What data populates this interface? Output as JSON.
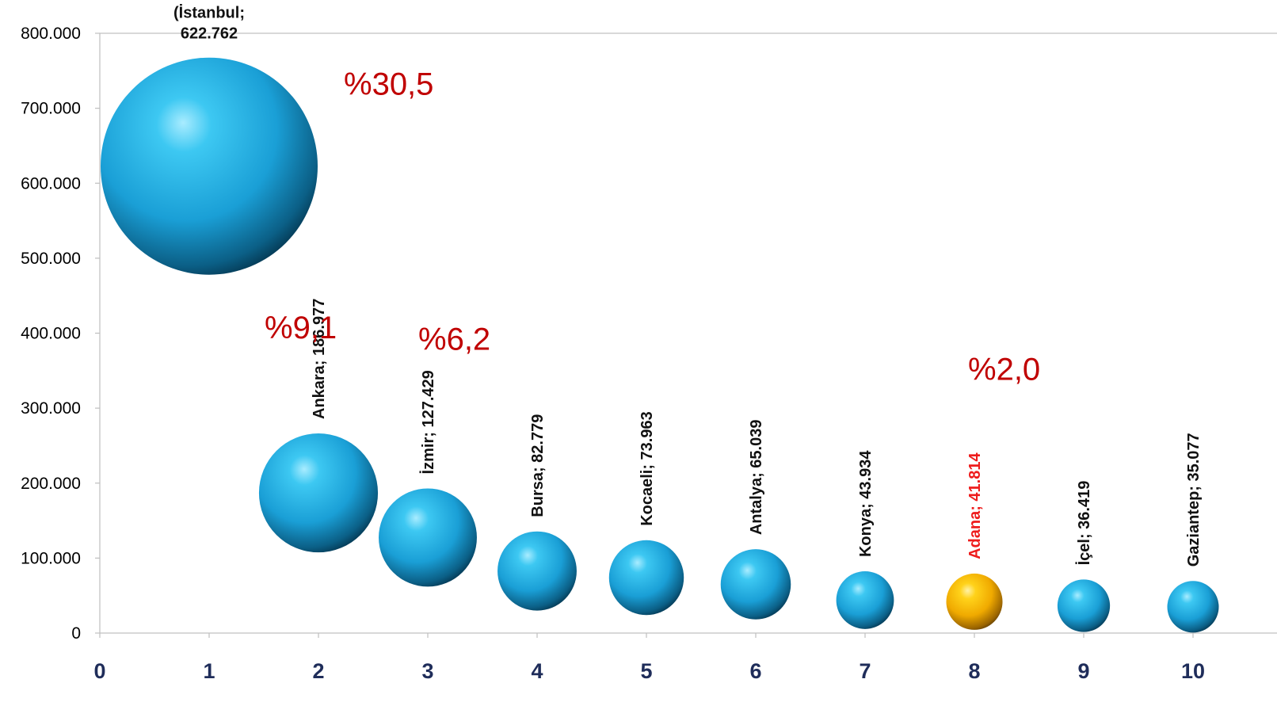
{
  "chart_data": {
    "type": "bubble",
    "xlim": [
      0,
      10
    ],
    "ylim": [
      0,
      800000
    ],
    "x_ticks": [
      "0",
      "1",
      "2",
      "3",
      "4",
      "5",
      "6",
      "7",
      "8",
      "9",
      "10"
    ],
    "y_ticks": [
      "0",
      "100.000",
      "200.000",
      "300.000",
      "400.000",
      "500.000",
      "600.000",
      "700.000",
      "800.000"
    ],
    "grid": false,
    "colors": {
      "bubble": "#1ea5db",
      "highlight": "#f5b400",
      "highlight_label": "#ee1c1c",
      "percent": "#c00000",
      "x_tick": "#1f2d5a"
    },
    "points": [
      {
        "x": 1,
        "y": 622762,
        "label": "(İstanbul;\n622.762"
      },
      {
        "x": 2,
        "y": 186977,
        "label": "Ankara; 186.977"
      },
      {
        "x": 3,
        "y": 127429,
        "label": "İzmir; 127.429"
      },
      {
        "x": 4,
        "y": 82779,
        "label": "Bursa; 82.779"
      },
      {
        "x": 5,
        "y": 73963,
        "label": "Kocaeli; 73.963"
      },
      {
        "x": 6,
        "y": 65039,
        "label": "Antalya; 65.039"
      },
      {
        "x": 7,
        "y": 43934,
        "label": "Konya; 43.934"
      },
      {
        "x": 8,
        "y": 41814,
        "label": "Adana; 41.814",
        "highlight": true
      },
      {
        "x": 9,
        "y": 36419,
        "label": "İçel; 36.419"
      },
      {
        "x": 10,
        "y": 35077,
        "label": "Gaziantep; 35.077"
      }
    ],
    "annotations": [
      {
        "text": "%30,5",
        "point": 1
      },
      {
        "text": "%9,1",
        "point": 2
      },
      {
        "text": "%6,2",
        "point": 3
      },
      {
        "text": "%2,0",
        "point": 8
      }
    ]
  }
}
